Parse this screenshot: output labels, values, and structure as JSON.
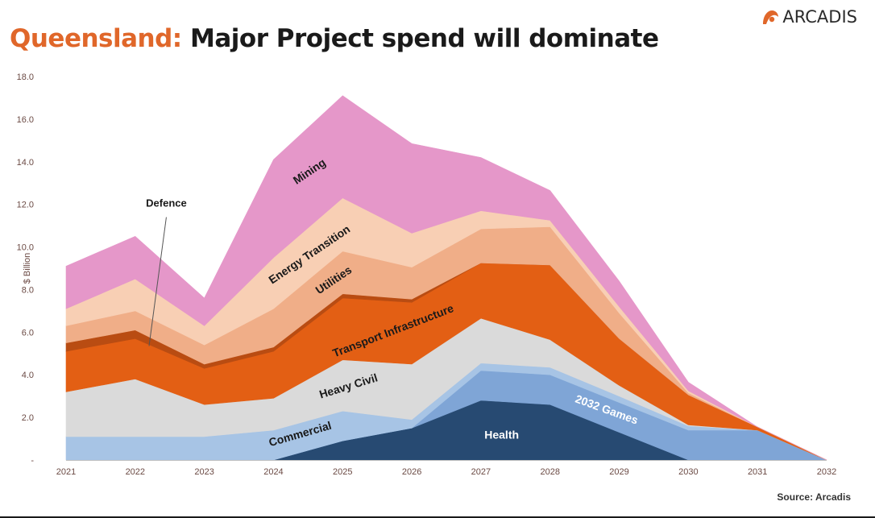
{
  "header": {
    "title_accent": "Queensland:",
    "title_rest": "Major Project spend will dominate",
    "logo_text": "ARCADIS"
  },
  "source": "Source: Arcadis",
  "colors": {
    "accent": "#e0672a",
    "Commercial": "#a7c4e5",
    "Heavy Civil": "#dadada",
    "Transport Infrastructure": "#e35f14",
    "Defence": "#b94c12",
    "Utilities": "#f0ae88",
    "Energy Transition": "#f8cfb4",
    "Mining": "#e597c9",
    "2032 Games": "#7fa5d6",
    "Health": "#274a72"
  },
  "chart_data": {
    "type": "area",
    "stacked": true,
    "title": "",
    "xlabel": "",
    "ylabel": "$ Billion",
    "ylim": [
      0,
      18
    ],
    "yticks": [
      "-",
      "2.0",
      "4.0",
      "6.0",
      "8.0",
      "10.0",
      "12.0",
      "14.0",
      "16.0",
      "18.0"
    ],
    "x": [
      "2021",
      "2022",
      "2023",
      "2024",
      "2025",
      "2026",
      "2027",
      "2028",
      "2029",
      "2030",
      "2031",
      "2032"
    ],
    "series": [
      {
        "name": "Health",
        "values": [
          0,
          0,
          0,
          0,
          0.9,
          1.5,
          2.8,
          2.6,
          1.3,
          0,
          0,
          0
        ]
      },
      {
        "name": "2032 Games",
        "values": [
          0,
          0,
          0,
          0,
          0,
          0,
          1.4,
          1.4,
          1.4,
          1.4,
          1.4,
          0
        ]
      },
      {
        "name": "Commercial",
        "values": [
          1.1,
          1.1,
          1.1,
          1.4,
          1.4,
          0.4,
          0.35,
          0.35,
          0.3,
          0.2,
          0,
          0
        ]
      },
      {
        "name": "Heavy Civil",
        "values": [
          2.1,
          2.7,
          1.5,
          1.5,
          2.4,
          2.6,
          2.1,
          1.3,
          0.5,
          0.05,
          0,
          0
        ]
      },
      {
        "name": "Transport Infrastructure",
        "values": [
          1.9,
          1.9,
          1.7,
          2.2,
          2.9,
          2.9,
          2.6,
          3.5,
          2.2,
          1.4,
          0.15,
          0
        ]
      },
      {
        "name": "Defence",
        "values": [
          0.4,
          0.4,
          0.2,
          0.2,
          0.2,
          0.15,
          0,
          0,
          0,
          0,
          0,
          0
        ]
      },
      {
        "name": "Utilities",
        "values": [
          0.8,
          0.9,
          0.9,
          1.8,
          2.0,
          1.5,
          1.6,
          1.8,
          1.2,
          0.1,
          0,
          0
        ]
      },
      {
        "name": "Energy Transition",
        "values": [
          0.8,
          1.5,
          0.9,
          2.4,
          2.5,
          1.6,
          0.85,
          0.3,
          0.3,
          0.1,
          0,
          0
        ]
      },
      {
        "name": "Mining",
        "values": [
          2.0,
          2.0,
          1.3,
          4.6,
          4.8,
          4.2,
          2.5,
          1.4,
          1.2,
          0.4,
          0,
          0
        ]
      }
    ],
    "labels": [
      {
        "text": "Mining",
        "series": "Mining",
        "x": 2024.55,
        "y": 13.4,
        "angle": -34
      },
      {
        "text": "Energy Transition",
        "series": "Energy Transition",
        "x": 2024.55,
        "y": 9.5,
        "angle": -34
      },
      {
        "text": "Utilities",
        "series": "Utilities",
        "x": 2024.9,
        "y": 8.3,
        "angle": -34
      },
      {
        "text": "Transport Infrastructure",
        "series": "Transport Infrastructure",
        "x": 2025.75,
        "y": 5.9,
        "angle": -21
      },
      {
        "text": "Heavy Civil",
        "series": "Heavy Civil",
        "x": 2025.1,
        "y": 3.3,
        "angle": -17
      },
      {
        "text": "Commercial",
        "series": "Commercial",
        "x": 2024.4,
        "y": 1.05,
        "angle": -16
      },
      {
        "text": "Health",
        "series": "Health",
        "x": 2027.3,
        "y": 1.0,
        "angle": 0
      },
      {
        "text": "2032 Games",
        "series": "2032 Games",
        "x": 2028.8,
        "y": 2.2,
        "angle": 20
      },
      {
        "text": "Defence",
        "series": "Defence",
        "x": 2022.45,
        "y": 11.9,
        "angle": 0
      }
    ],
    "annotations": [
      {
        "type": "leader-line",
        "target": "Defence",
        "from": [
          2022.45,
          11.4
        ],
        "to": [
          2022.2,
          5.35
        ]
      }
    ],
    "grid": false,
    "legend": "none"
  }
}
